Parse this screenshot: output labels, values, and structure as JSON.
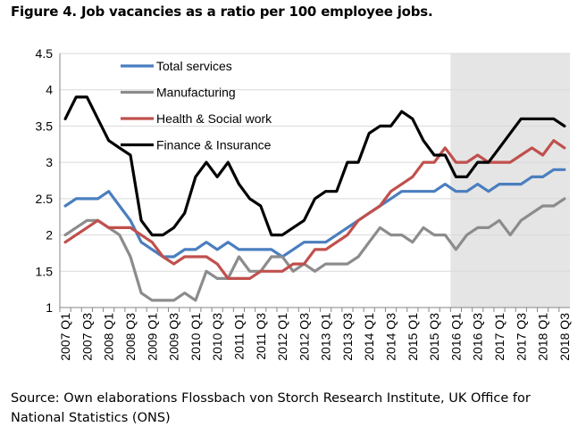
{
  "figure_title": "Figure 4. Job vacancies as a ratio per 100 employee jobs.",
  "source_text": "Source: Own elaborations Flossbach von Storch Research Institute, UK Office for National Statistics (ONS)",
  "colors": {
    "total_services": "#4a7ebf",
    "manufacturing": "#8c8c8c",
    "health": "#c0504d",
    "finance": "#000000",
    "shaded_forecast": "#e5e5e5",
    "grid": "#d9d9d9"
  },
  "chart_data": {
    "type": "line",
    "ylim": [
      1,
      4.5
    ],
    "yticks": [
      "4.5",
      "4",
      "3.5",
      "3",
      "2.5",
      "2",
      "1.5",
      "1"
    ],
    "shaded_from": "2016 Q1",
    "x": [
      "2007 Q1",
      "2007 Q2",
      "2007 Q3",
      "2007 Q4",
      "2008 Q1",
      "2008 Q2",
      "2008 Q3",
      "2008 Q4",
      "2009 Q1",
      "2009 Q2",
      "2009 Q3",
      "2009 Q4",
      "2010 Q1",
      "2010 Q2",
      "2010 Q3",
      "2010 Q4",
      "2011 Q1",
      "2011 Q2",
      "2011 Q3",
      "2011 Q4",
      "2012 Q1",
      "2012 Q2",
      "2012 Q3",
      "2012 Q4",
      "2013 Q1",
      "2013 Q2",
      "2013 Q3",
      "2013 Q4",
      "2014 Q1",
      "2014 Q2",
      "2014 Q3",
      "2014 Q4",
      "2015 Q1",
      "2015 Q2",
      "2015 Q3",
      "2015 Q4",
      "2016 Q1",
      "2016 Q2",
      "2016 Q3",
      "2016 Q4",
      "2017 Q1",
      "2017 Q2",
      "2017 Q3",
      "2017 Q4",
      "2018 Q1",
      "2018 Q2",
      "2018 Q3"
    ],
    "xtick_labels": [
      "2007 Q1",
      "2007 Q3",
      "2008 Q1",
      "2008 Q3",
      "2009 Q1",
      "2009 Q3",
      "2010 Q1",
      "2010 Q3",
      "2011 Q1",
      "2011 Q3",
      "2012 Q1",
      "2012 Q3",
      "2013 Q1",
      "2013 Q3",
      "2014 Q1",
      "2014 Q3",
      "2015 Q1",
      "2015 Q3",
      "2016 Q1",
      "2016 Q3",
      "2017 Q1",
      "2017 Q3",
      "2018 Q1",
      "2018 Q3"
    ],
    "legend_position": "top-left",
    "series": [
      {
        "name": "Total services",
        "color_key": "total_services",
        "values": [
          2.4,
          2.5,
          2.5,
          2.5,
          2.6,
          2.4,
          2.2,
          1.9,
          1.8,
          1.7,
          1.7,
          1.8,
          1.8,
          1.9,
          1.8,
          1.9,
          1.8,
          1.8,
          1.8,
          1.8,
          1.7,
          1.8,
          1.9,
          1.9,
          1.9,
          2.0,
          2.1,
          2.2,
          2.3,
          2.4,
          2.5,
          2.6,
          2.6,
          2.6,
          2.6,
          2.7,
          2.6,
          2.6,
          2.7,
          2.6,
          2.7,
          2.7,
          2.7,
          2.8,
          2.8,
          2.9,
          2.9
        ]
      },
      {
        "name": "Manufacturing",
        "color_key": "manufacturing",
        "values": [
          2.0,
          2.1,
          2.2,
          2.2,
          2.1,
          2.0,
          1.7,
          1.2,
          1.1,
          1.1,
          1.1,
          1.2,
          1.1,
          1.5,
          1.4,
          1.4,
          1.7,
          1.5,
          1.5,
          1.7,
          1.7,
          1.5,
          1.6,
          1.5,
          1.6,
          1.6,
          1.6,
          1.7,
          1.9,
          2.1,
          2.0,
          2.0,
          1.9,
          2.1,
          2.0,
          2.0,
          1.8,
          2.0,
          2.1,
          2.1,
          2.2,
          2.0,
          2.2,
          2.3,
          2.4,
          2.4,
          2.5
        ]
      },
      {
        "name": "Health & Social work",
        "color_key": "health",
        "values": [
          1.9,
          2.0,
          2.1,
          2.2,
          2.1,
          2.1,
          2.1,
          2.0,
          1.9,
          1.7,
          1.6,
          1.7,
          1.7,
          1.7,
          1.6,
          1.4,
          1.4,
          1.4,
          1.5,
          1.5,
          1.5,
          1.6,
          1.6,
          1.8,
          1.8,
          1.9,
          2.0,
          2.2,
          2.3,
          2.4,
          2.6,
          2.7,
          2.8,
          3.0,
          3.0,
          3.2,
          3.0,
          3.0,
          3.1,
          3.0,
          3.0,
          3.0,
          3.1,
          3.2,
          3.1,
          3.3,
          3.2
        ]
      },
      {
        "name": "Finance & Insurance",
        "color_key": "finance",
        "values": [
          3.6,
          3.9,
          3.9,
          3.6,
          3.3,
          3.2,
          3.1,
          2.2,
          2.0,
          2.0,
          2.1,
          2.3,
          2.8,
          3.0,
          2.8,
          3.0,
          2.7,
          2.5,
          2.4,
          2.0,
          2.0,
          2.1,
          2.2,
          2.5,
          2.6,
          2.6,
          3.0,
          3.0,
          3.4,
          3.5,
          3.5,
          3.7,
          3.6,
          3.3,
          3.1,
          3.1,
          2.8,
          2.8,
          3.0,
          3.0,
          3.2,
          3.4,
          3.6,
          3.6,
          3.6,
          3.6,
          3.5
        ]
      }
    ]
  }
}
